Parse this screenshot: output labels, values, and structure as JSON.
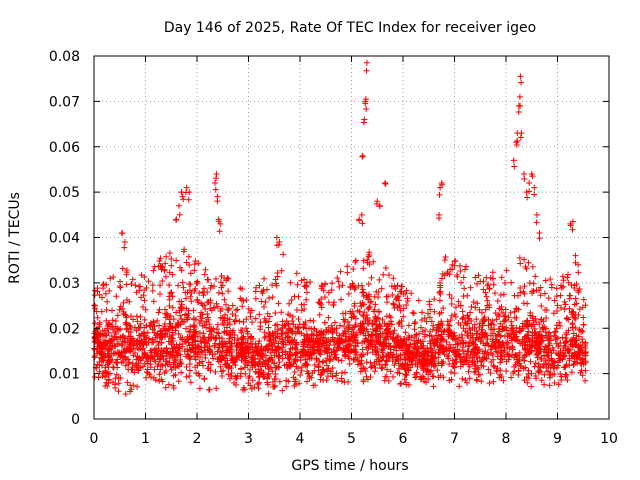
{
  "chart_data": {
    "type": "scatter",
    "title": "Day 146 of 2025, Rate Of TEC Index for receiver igeo",
    "xlabel": "GPS time / hours",
    "ylabel": "ROTI / TECUs",
    "xlim": [
      0,
      10
    ],
    "ylim": [
      0,
      0.08
    ],
    "x_ticks": [
      "0",
      "1",
      "2",
      "3",
      "4",
      "5",
      "6",
      "7",
      "8",
      "9",
      "10"
    ],
    "y_ticks": [
      "0",
      "0.01",
      "0.02",
      "0.03",
      "0.04",
      "0.05",
      "0.06",
      "0.07",
      "0.08"
    ],
    "grid": true,
    "marker": "plus",
    "series_color": "#ff0000",
    "x_data_end": 9.55,
    "series": [
      {
        "name": "ROTI",
        "baseline_envelope": [
          [
            0.0,
            0.009,
            0.03
          ],
          [
            0.3,
            0.006,
            0.031
          ],
          [
            0.6,
            0.005,
            0.034
          ],
          [
            1.0,
            0.007,
            0.032
          ],
          [
            1.4,
            0.006,
            0.037
          ],
          [
            1.8,
            0.006,
            0.038
          ],
          [
            2.2,
            0.006,
            0.034
          ],
          [
            2.6,
            0.007,
            0.031
          ],
          [
            3.0,
            0.006,
            0.028
          ],
          [
            3.4,
            0.005,
            0.032
          ],
          [
            3.7,
            0.006,
            0.037
          ],
          [
            4.0,
            0.007,
            0.031
          ],
          [
            4.5,
            0.007,
            0.03
          ],
          [
            5.0,
            0.008,
            0.035
          ],
          [
            5.3,
            0.008,
            0.038
          ],
          [
            5.7,
            0.008,
            0.033
          ],
          [
            6.0,
            0.007,
            0.029
          ],
          [
            6.5,
            0.007,
            0.026
          ],
          [
            6.8,
            0.007,
            0.036
          ],
          [
            7.2,
            0.006,
            0.034
          ],
          [
            7.6,
            0.008,
            0.032
          ],
          [
            8.0,
            0.007,
            0.033
          ],
          [
            8.3,
            0.007,
            0.036
          ],
          [
            8.6,
            0.007,
            0.034
          ],
          [
            9.0,
            0.007,
            0.03
          ],
          [
            9.3,
            0.008,
            0.035
          ],
          [
            9.55,
            0.008,
            0.025
          ]
        ],
        "spike_points": [
          [
            0.55,
            0.041
          ],
          [
            0.6,
            0.039
          ],
          [
            1.6,
            0.044
          ],
          [
            1.65,
            0.047
          ],
          [
            1.7,
            0.05
          ],
          [
            1.72,
            0.049
          ],
          [
            1.8,
            0.051
          ],
          [
            1.85,
            0.05
          ],
          [
            2.35,
            0.052
          ],
          [
            2.38,
            0.054
          ],
          [
            2.4,
            0.049
          ],
          [
            2.42,
            0.044
          ],
          [
            2.45,
            0.043
          ],
          [
            3.55,
            0.04
          ],
          [
            3.6,
            0.039
          ],
          [
            5.15,
            0.044
          ],
          [
            5.2,
            0.045
          ],
          [
            5.22,
            0.058
          ],
          [
            5.25,
            0.066
          ],
          [
            5.27,
            0.07
          ],
          [
            5.28,
            0.0705
          ],
          [
            5.3,
            0.0785
          ],
          [
            5.5,
            0.048
          ],
          [
            5.55,
            0.047
          ],
          [
            5.65,
            0.052
          ],
          [
            6.7,
            0.045
          ],
          [
            6.72,
            0.051
          ],
          [
            6.75,
            0.052
          ],
          [
            8.15,
            0.057
          ],
          [
            8.2,
            0.061
          ],
          [
            8.22,
            0.063
          ],
          [
            8.25,
            0.069
          ],
          [
            8.27,
            0.071
          ],
          [
            8.28,
            0.0755
          ],
          [
            8.3,
            0.063
          ],
          [
            8.35,
            0.054
          ],
          [
            8.4,
            0.05
          ],
          [
            8.45,
            0.052
          ],
          [
            8.5,
            0.054
          ],
          [
            8.55,
            0.051
          ],
          [
            8.6,
            0.045
          ],
          [
            8.65,
            0.041
          ],
          [
            9.25,
            0.043
          ],
          [
            9.3,
            0.0435
          ],
          [
            9.35,
            0.036
          ],
          [
            9.4,
            0.034
          ]
        ]
      }
    ]
  }
}
